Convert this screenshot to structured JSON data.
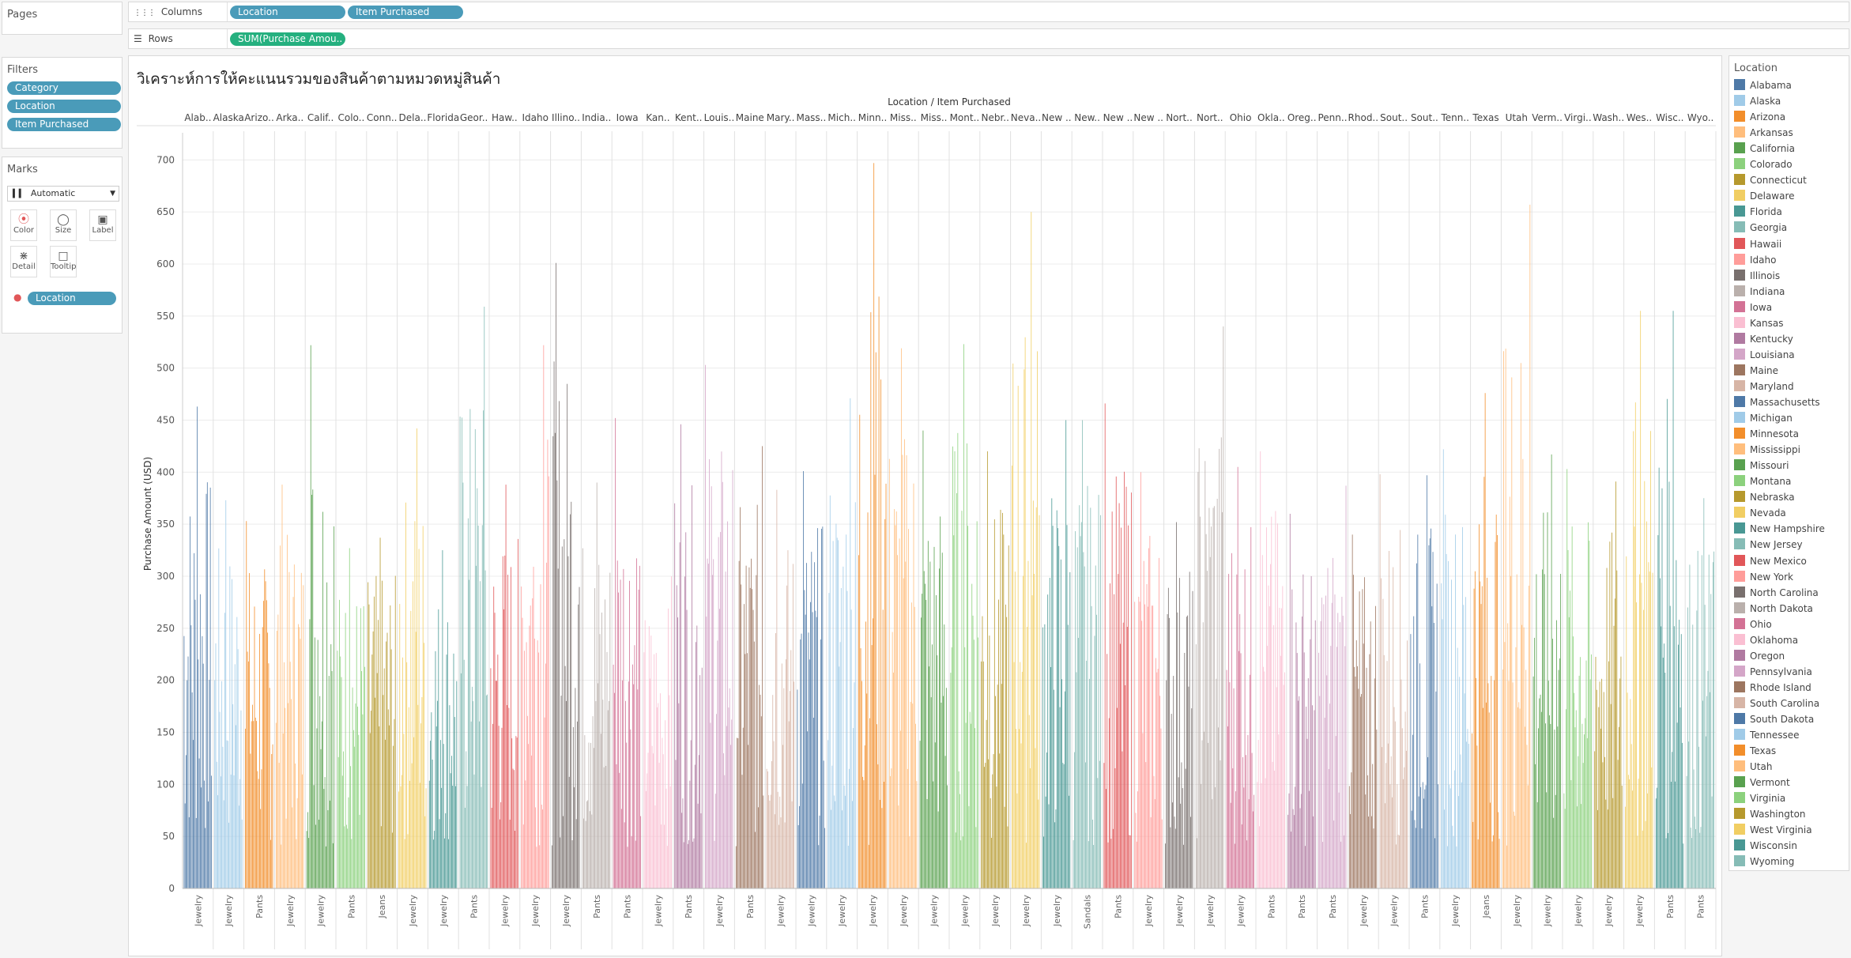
{
  "pages": {
    "title": "Pages"
  },
  "columns": {
    "label": "Columns",
    "pills": [
      "Location",
      "Item Purchased"
    ]
  },
  "rows": {
    "label": "Rows",
    "pills": [
      "SUM(Purchase Amou.."
    ]
  },
  "filters": {
    "title": "Filters",
    "pills": [
      "Category",
      "Location",
      "Item Purchased"
    ]
  },
  "marks": {
    "title": "Marks",
    "type": "Automatic",
    "buttons": [
      {
        "label": "Color",
        "icon": "color-icon"
      },
      {
        "label": "Size",
        "icon": "size-icon"
      },
      {
        "label": "Label",
        "icon": "label-icon"
      },
      {
        "label": "Detail",
        "icon": "detail-icon"
      },
      {
        "label": "Tooltip",
        "icon": "tooltip-icon"
      }
    ],
    "color_pill": "Location"
  },
  "legend": {
    "title": "Location"
  },
  "chart_data": {
    "type": "bar",
    "title": "วิเคราะห์การให้คะแนนรวมของสินค้าตามหมวดหมู่สินค้า",
    "header_title": "Location / Item Purchased",
    "ylabel": "Purchase Amount (USD)",
    "ylim": [
      0,
      720
    ],
    "yticks": [
      0,
      50,
      100,
      150,
      200,
      250,
      300,
      350,
      400,
      450,
      500,
      550,
      600,
      650,
      700
    ],
    "grid": true,
    "legend_position": "right",
    "note": "Each location panel contains many thin bars (one per item purchased); peak values and sample item labels estimated from the chart.",
    "locations": [
      {
        "name": "Alabama",
        "header": "Alab..",
        "color": "#4e79a7",
        "peak": 463,
        "item_labels": [
          "Jewelry"
        ]
      },
      {
        "name": "Alaska",
        "header": "Alaska",
        "color": "#a0cbe8",
        "peak": 373,
        "item_labels": [
          "Jewelry"
        ]
      },
      {
        "name": "Arizona",
        "header": "Arizo..",
        "color": "#f28e2b",
        "peak": 353,
        "item_labels": [
          "Pants"
        ]
      },
      {
        "name": "Arkansas",
        "header": "Arka..",
        "color": "#ffbe7d",
        "peak": 388,
        "item_labels": [
          "Jewelry"
        ]
      },
      {
        "name": "California",
        "header": "Calif..",
        "color": "#59a14f",
        "peak": 522,
        "item_labels": [
          "Jewelry"
        ]
      },
      {
        "name": "Colorado",
        "header": "Colo..",
        "color": "#8cd17d",
        "peak": 327,
        "item_labels": [
          "Pants"
        ]
      },
      {
        "name": "Connecticut",
        "header": "Conn..",
        "color": "#b6992d",
        "peak": 337,
        "item_labels": [
          "Jeans"
        ]
      },
      {
        "name": "Delaware",
        "header": "Dela..",
        "color": "#f1ce63",
        "peak": 442,
        "item_labels": [
          "Jewelry"
        ]
      },
      {
        "name": "Florida",
        "header": "Florida",
        "color": "#499894",
        "peak": 325,
        "item_labels": [
          "Jewelry"
        ]
      },
      {
        "name": "Georgia",
        "header": "Geor..",
        "color": "#86bcb6",
        "peak": 559,
        "item_labels": [
          "Pants"
        ]
      },
      {
        "name": "Hawaii",
        "header": "Haw..",
        "color": "#e15759",
        "peak": 388,
        "item_labels": [
          "Jewelry"
        ]
      },
      {
        "name": "Idaho",
        "header": "Idaho",
        "color": "#ff9d9a",
        "peak": 522,
        "item_labels": [
          "Jewelry"
        ]
      },
      {
        "name": "Illinois",
        "header": "Illino..",
        "color": "#79706e",
        "peak": 601,
        "item_labels": [
          "Jewelry"
        ]
      },
      {
        "name": "Indiana",
        "header": "India..",
        "color": "#bab0ac",
        "peak": 390,
        "item_labels": [
          "Pants"
        ]
      },
      {
        "name": "Iowa",
        "header": "Iowa",
        "color": "#d37295",
        "peak": 452,
        "item_labels": [
          "Pants"
        ]
      },
      {
        "name": "Kansas",
        "header": "Kan..",
        "color": "#fabfd2",
        "peak": 300,
        "item_labels": [
          "Jewelry"
        ]
      },
      {
        "name": "Kentucky",
        "header": "Kent..",
        "color": "#b07aa1",
        "peak": 446,
        "item_labels": [
          "Pants"
        ]
      },
      {
        "name": "Louisiana",
        "header": "Louis..",
        "color": "#d4a6c8",
        "peak": 503,
        "item_labels": [
          "Jewelry"
        ]
      },
      {
        "name": "Maine",
        "header": "Maine",
        "color": "#9d7660",
        "peak": 425,
        "item_labels": [
          "Pants"
        ]
      },
      {
        "name": "Maryland",
        "header": "Mary..",
        "color": "#d7b5a6",
        "peak": 383,
        "item_labels": [
          "Jewelry"
        ]
      },
      {
        "name": "Massachusetts",
        "header": "Mass..",
        "color": "#4e79a7",
        "peak": 401,
        "item_labels": [
          "Jewelry"
        ]
      },
      {
        "name": "Michigan",
        "header": "Mich..",
        "color": "#a0cbe8",
        "peak": 471,
        "item_labels": [
          "Jewelry"
        ]
      },
      {
        "name": "Minnesota",
        "header": "Minn..",
        "color": "#f28e2b",
        "peak": 697,
        "item_labels": [
          "Jewelry"
        ]
      },
      {
        "name": "Mississippi",
        "header": "Miss..",
        "color": "#ffbe7d",
        "peak": 519,
        "item_labels": [
          "Jewelry"
        ]
      },
      {
        "name": "Missouri",
        "header": "Miss..",
        "color": "#59a14f",
        "peak": 440,
        "item_labels": [
          "Jewelry"
        ]
      },
      {
        "name": "Montana",
        "header": "Mont..",
        "color": "#8cd17d",
        "peak": 523,
        "item_labels": [
          "Jewelry"
        ]
      },
      {
        "name": "Nebraska",
        "header": "Nebr..",
        "color": "#b6992d",
        "peak": 420,
        "item_labels": [
          "Jewelry"
        ]
      },
      {
        "name": "Nevada",
        "header": "Neva..",
        "color": "#f1ce63",
        "peak": 650,
        "item_labels": [
          "Jewelry"
        ]
      },
      {
        "name": "New Hampshire",
        "header": "New ..",
        "color": "#499894",
        "peak": 450,
        "item_labels": [
          "Jewelry"
        ]
      },
      {
        "name": "New Jersey",
        "header": "New..",
        "color": "#86bcb6",
        "peak": 450,
        "item_labels": [
          "Sandals"
        ]
      },
      {
        "name": "New Mexico",
        "header": "New ..",
        "color": "#e15759",
        "peak": 466,
        "item_labels": [
          "Pants"
        ]
      },
      {
        "name": "New York",
        "header": "New ..",
        "color": "#ff9d9a",
        "peak": 400,
        "item_labels": [
          "Jewelry"
        ]
      },
      {
        "name": "North Carolina",
        "header": "Nort..",
        "color": "#79706e",
        "peak": 352,
        "item_labels": [
          "Jewelry"
        ]
      },
      {
        "name": "North Dakota",
        "header": "Nort..",
        "color": "#bab0ac",
        "peak": 540,
        "item_labels": [
          "Jewelry"
        ]
      },
      {
        "name": "Ohio",
        "header": "Ohio",
        "color": "#d37295",
        "peak": 405,
        "item_labels": [
          "Jewelry"
        ]
      },
      {
        "name": "Oklahoma",
        "header": "Okla..",
        "color": "#fabfd2",
        "peak": 420,
        "item_labels": [
          "Pants"
        ]
      },
      {
        "name": "Oregon",
        "header": "Oreg..",
        "color": "#b07aa1",
        "peak": 360,
        "item_labels": [
          "Pants"
        ]
      },
      {
        "name": "Pennsylvania",
        "header": "Penn..",
        "color": "#d4a6c8",
        "peak": 387,
        "item_labels": [
          "Pants"
        ]
      },
      {
        "name": "Rhode Island",
        "header": "Rhod..",
        "color": "#9d7660",
        "peak": 340,
        "item_labels": [
          "Jewelry"
        ]
      },
      {
        "name": "South Carolina",
        "header": "Sout..",
        "color": "#d7b5a6",
        "peak": 398,
        "item_labels": [
          "Jewelry"
        ]
      },
      {
        "name": "South Dakota",
        "header": "Sout..",
        "color": "#4e79a7",
        "peak": 397,
        "item_labels": [
          "Pants"
        ]
      },
      {
        "name": "Tennessee",
        "header": "Tenn..",
        "color": "#a0cbe8",
        "peak": 422,
        "item_labels": [
          "Jewelry"
        ]
      },
      {
        "name": "Texas",
        "header": "Texas",
        "color": "#f28e2b",
        "peak": 476,
        "item_labels": [
          "Jeans"
        ]
      },
      {
        "name": "Utah",
        "header": "Utah",
        "color": "#ffbe7d",
        "peak": 657,
        "item_labels": [
          "Jewelry"
        ]
      },
      {
        "name": "Vermont",
        "header": "Verm..",
        "color": "#59a14f",
        "peak": 417,
        "item_labels": [
          "Jewelry"
        ]
      },
      {
        "name": "Virginia",
        "header": "Virgi..",
        "color": "#8cd17d",
        "peak": 403,
        "item_labels": [
          "Jewelry"
        ]
      },
      {
        "name": "Washington",
        "header": "Wash..",
        "color": "#b6992d",
        "peak": 391,
        "item_labels": [
          "Jewelry"
        ]
      },
      {
        "name": "West Virginia",
        "header": "Wes..",
        "color": "#f1ce63",
        "peak": 555,
        "item_labels": [
          "Jewelry"
        ]
      },
      {
        "name": "Wisconsin",
        "header": "Wisc..",
        "color": "#499894",
        "peak": 555,
        "item_labels": [
          "Pants"
        ]
      },
      {
        "name": "Wyoming",
        "header": "Wyo..",
        "color": "#86bcb6",
        "peak": 375,
        "item_labels": [
          "Pants"
        ]
      }
    ]
  }
}
